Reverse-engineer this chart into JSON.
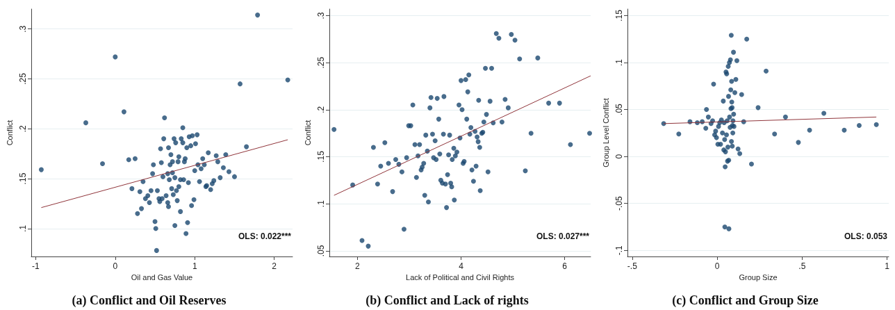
{
  "chart_data": [
    {
      "type": "scatter",
      "title": "(a) Conflict and Oil Reserves",
      "xlabel": "Oil and Gas Value",
      "ylabel": "Conflict",
      "annotations": [
        "OLS: 0.022***"
      ],
      "grid": "y",
      "marker": "circle",
      "xlim": [
        -1.056,
        2.23
      ],
      "ylim": [
        0.072,
        0.32
      ],
      "xticks": [
        -1,
        0,
        1,
        2
      ],
      "yticks": [
        {
          "value": 0.1,
          "label": ".1"
        },
        {
          "value": 0.15,
          "label": ".15"
        },
        {
          "value": 0.2,
          "label": ".2"
        },
        {
          "value": 0.25,
          "label": ".25"
        },
        {
          "value": 0.3,
          "label": ".3"
        }
      ],
      "series": [
        {
          "color": "#1a476f",
          "x": [
            -0.93,
            -0.37,
            -0.16,
            0.0,
            0.11,
            0.17,
            0.25,
            0.21,
            0.28,
            0.31,
            0.33,
            0.35,
            0.38,
            0.41,
            0.43,
            0.45,
            0.47,
            0.48,
            0.5,
            0.51,
            0.52,
            0.53,
            0.55,
            0.56,
            0.57,
            0.58,
            0.59,
            0.6,
            0.61,
            0.62,
            0.64,
            0.66,
            0.66,
            0.67,
            0.67,
            0.68,
            0.69,
            0.7,
            0.71,
            0.72,
            0.72,
            0.73,
            0.74,
            0.75,
            0.75,
            0.77,
            0.76,
            0.78,
            0.79,
            0.8,
            0.8,
            0.82,
            0.82,
            0.83,
            0.85,
            0.85,
            0.86,
            0.87,
            0.88,
            0.89,
            0.9,
            0.91,
            0.92,
            0.93,
            0.95,
            0.96,
            0.97,
            0.99,
            1.0,
            1.01,
            1.03,
            1.04,
            1.06,
            1.08,
            1.1,
            1.12,
            1.14,
            1.15,
            1.17,
            1.2,
            1.22,
            1.24,
            1.27,
            1.29,
            1.32,
            1.36,
            1.39,
            1.43,
            1.5,
            1.57,
            1.65,
            1.79,
            2.17
          ],
          "values": [
            0.159,
            0.206,
            0.165,
            0.272,
            0.217,
            0.169,
            0.17,
            0.14,
            0.115,
            0.137,
            0.12,
            0.147,
            0.13,
            0.133,
            0.126,
            0.138,
            0.155,
            0.164,
            0.107,
            0.1,
            0.078,
            0.138,
            0.13,
            0.127,
            0.18,
            0.166,
            0.13,
            0.152,
            0.19,
            0.211,
            0.133,
            0.155,
            0.126,
            0.122,
            0.181,
            0.149,
            0.164,
            0.174,
            0.14,
            0.156,
            0.167,
            0.134,
            0.19,
            0.151,
            0.103,
            0.138,
            0.186,
            0.128,
            0.167,
            0.172,
            0.142,
            0.149,
            0.117,
            0.19,
            0.186,
            0.201,
            0.149,
            0.167,
            0.17,
            0.095,
            0.181,
            0.106,
            0.146,
            0.192,
            0.183,
            0.123,
            0.193,
            0.129,
            0.158,
            0.185,
            0.194,
            0.164,
            0.147,
            0.16,
            0.17,
            0.164,
            0.142,
            0.143,
            0.176,
            0.139,
            0.145,
            0.148,
            0.173,
            0.167,
            0.151,
            0.161,
            0.174,
            0.157,
            0.152,
            0.245,
            0.182,
            0.314,
            0.249
          ]
        },
        {
          "type": "line",
          "marker": "none",
          "color": "#90353b",
          "x": [
            -0.93,
            2.17
          ],
          "values": [
            0.121,
            0.189
          ]
        }
      ]
    },
    {
      "type": "scatter",
      "title": "(b) Conflict and Lack of rights",
      "xlabel": "Lack of Political and Civil Rights",
      "ylabel": "Conflict",
      "annotations": [
        "OLS: 0.027***"
      ],
      "grid": "y",
      "marker": "circle",
      "xlim": [
        1.46,
        6.5
      ],
      "ylim": [
        0.044,
        0.307
      ],
      "xticks": [
        2,
        4,
        6
      ],
      "yticks": [
        {
          "value": 0.05,
          "label": ".05"
        },
        {
          "value": 0.1,
          "label": ".1"
        },
        {
          "value": 0.15,
          "label": ".15"
        },
        {
          "value": 0.2,
          "label": ".2"
        },
        {
          "value": 0.25,
          "label": ".25"
        },
        {
          "value": 0.3,
          "label": ".3"
        }
      ],
      "series": [
        {
          "color": "#1a476f",
          "x": [
            1.55,
            1.91,
            2.09,
            2.21,
            2.31,
            2.39,
            2.45,
            2.53,
            2.6,
            2.68,
            2.74,
            2.8,
            2.86,
            2.9,
            2.95,
            2.99,
            3.03,
            3.07,
            3.11,
            3.14,
            3.17,
            3.2,
            3.23,
            3.25,
            3.28,
            3.3,
            3.32,
            3.35,
            3.37,
            3.4,
            3.42,
            3.45,
            3.47,
            3.5,
            3.52,
            3.54,
            3.57,
            3.59,
            3.61,
            3.64,
            3.66,
            3.67,
            3.7,
            3.72,
            3.74,
            3.76,
            3.78,
            3.8,
            3.82,
            3.83,
            3.86,
            3.87,
            3.89,
            3.92,
            3.96,
            3.98,
            4.0,
            4.02,
            4.04,
            4.06,
            4.09,
            4.11,
            4.13,
            4.15,
            4.17,
            4.19,
            4.21,
            4.24,
            4.27,
            4.29,
            4.31,
            4.33,
            4.34,
            4.36,
            4.37,
            4.4,
            4.42,
            4.44,
            4.47,
            4.49,
            4.52,
            4.56,
            4.59,
            4.62,
            4.68,
            4.73,
            4.79,
            4.85,
            4.91,
            4.97,
            5.04,
            5.13,
            5.24,
            5.35,
            5.48,
            5.69,
            5.9,
            6.11,
            6.48
          ],
          "values": [
            0.179,
            0.12,
            0.061,
            0.055,
            0.16,
            0.121,
            0.14,
            0.165,
            0.143,
            0.113,
            0.147,
            0.142,
            0.134,
            0.073,
            0.149,
            0.183,
            0.183,
            0.205,
            0.163,
            0.128,
            0.151,
            0.163,
            0.136,
            0.139,
            0.143,
            0.109,
            0.173,
            0.156,
            0.102,
            0.202,
            0.213,
            0.174,
            0.149,
            0.167,
            0.147,
            0.212,
            0.19,
            0.153,
            0.125,
            0.122,
            0.174,
            0.214,
            0.121,
            0.096,
            0.131,
            0.152,
            0.173,
            0.122,
            0.118,
            0.147,
            0.159,
            0.104,
            0.151,
            0.155,
            0.205,
            0.17,
            0.231,
            0.2,
            0.143,
            0.145,
            0.232,
            0.19,
            0.219,
            0.237,
            0.174,
            0.181,
            0.136,
            0.124,
            0.177,
            0.14,
            0.171,
            0.166,
            0.21,
            0.16,
            0.114,
            0.175,
            0.176,
            0.187,
            0.244,
            0.195,
            0.134,
            0.209,
            0.244,
            0.186,
            0.281,
            0.276,
            0.187,
            0.211,
            0.202,
            0.28,
            0.274,
            0.254,
            0.135,
            0.175,
            0.255,
            0.207,
            0.207,
            0.163,
            0.175
          ]
        },
        {
          "type": "line",
          "marker": "none",
          "color": "#90353b",
          "x": [
            1.55,
            6.5
          ],
          "values": [
            0.109,
            0.236
          ]
        }
      ]
    },
    {
      "type": "scatter",
      "title": "(c) Conflict and Group Size",
      "xlabel": "Group Size",
      "ylabel": "Group Level Conflict",
      "annotations": [
        "OLS: 0.053"
      ],
      "grid": "y",
      "marker": "circle",
      "xlim": [
        -0.528,
        1.01
      ],
      "ylim": [
        -0.1065,
        0.157
      ],
      "xticks": [
        {
          "value": -0.5,
          "label": "-.5"
        },
        0,
        {
          "value": 0.5,
          "label": ".5"
        },
        1
      ],
      "yticks": [
        {
          "value": -0.1,
          "label": "-.1"
        },
        {
          "value": -0.05,
          "label": "-.05"
        },
        0,
        {
          "value": 0.05,
          "label": ".05"
        },
        {
          "value": 0.1,
          "label": ".1"
        },
        {
          "value": 0.15,
          "label": ".15"
        }
      ],
      "series": [
        {
          "color": "#1a476f",
          "x": [
            -0.315,
            -0.226,
            -0.16,
            -0.117,
            -0.088,
            -0.067,
            -0.063,
            -0.052,
            -0.036,
            -0.027,
            -0.021,
            -0.015,
            -0.009,
            -0.004,
            0.004,
            0.008,
            0.015,
            0.02,
            0.025,
            0.031,
            0.036,
            0.039,
            0.041,
            0.044,
            0.047,
            0.045,
            0.049,
            0.052,
            0.055,
            0.056,
            0.059,
            0.061,
            0.063,
            0.065,
            0.067,
            0.068,
            0.069,
            0.072,
            0.073,
            0.076,
            0.078,
            0.08,
            0.081,
            0.083,
            0.084,
            0.085,
            0.086,
            0.088,
            0.089,
            0.09,
            0.092,
            0.093,
            0.096,
            0.097,
            0.099,
            0.104,
            0.11,
            0.116,
            0.123,
            0.133,
            0.144,
            0.156,
            0.174,
            0.202,
            0.241,
            0.288,
            0.338,
            0.402,
            0.478,
            0.544,
            0.628,
            0.748,
            0.836,
            0.937
          ],
          "values": [
            0.035,
            0.024,
            0.037,
            0.036,
            0.037,
            0.03,
            0.05,
            0.042,
            0.035,
            0.038,
            0.077,
            0.023,
            0.027,
            0.02,
            0.013,
            0.032,
            0.036,
            0.013,
            0.039,
            0.025,
            0.059,
            0.007,
            0.036,
            0.018,
            -0.011,
            -0.075,
            0.005,
            0.09,
            0.023,
            0.088,
            0.038,
            -0.005,
            0.01,
            0.096,
            0.064,
            -0.004,
            -0.077,
            0.1,
            0.042,
            0.031,
            0.103,
            0.071,
            0.051,
            0.129,
            0.016,
            0.08,
            0.058,
            0.052,
            0.011,
            0.033,
            0.025,
            0.038,
            0.111,
            0.045,
            0.032,
            0.068,
            0.082,
            0.102,
            0.008,
            0.003,
            0.066,
            0.037,
            0.125,
            -0.008,
            0.052,
            0.091,
            0.024,
            0.042,
            0.015,
            0.028,
            0.046,
            0.028,
            0.033,
            0.034
          ]
        },
        {
          "type": "line",
          "marker": "none",
          "color": "#90353b",
          "x": [
            -0.315,
            0.937
          ],
          "values": [
            0.035,
            0.042
          ]
        }
      ]
    }
  ]
}
